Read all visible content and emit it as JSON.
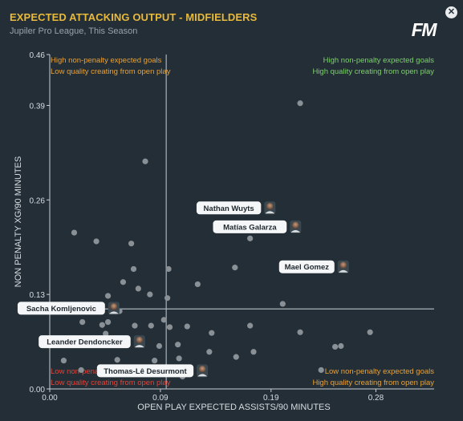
{
  "header": {
    "title": "EXPECTED ATTACKING OUTPUT - MIDFIELDERS",
    "subtitle": "Jupiler Pro League, This Season",
    "logo": "FM",
    "close_icon": "close-icon"
  },
  "colors": {
    "background": "#232e36",
    "title": "#e8b93a",
    "quadrant_top_left": "#e8a23a",
    "quadrant_top_right": "#7fcf6f",
    "quadrant_bottom_left": "#e0453a",
    "quadrant_bottom_right": "#e8a23a",
    "point": "#8a9196",
    "reference_line": "#aab3ba"
  },
  "chart_data": {
    "type": "scatter",
    "title": "EXPECTED ATTACKING OUTPUT - MIDFIELDERS",
    "subtitle": "Jupiler Pro League, This Season",
    "xlabel": "OPEN PLAY EXPECTED ASSISTS/90 MINUTES",
    "ylabel": "NON PENALTY XG/90 MINUTES",
    "xlim": [
      0,
      0.33
    ],
    "ylim": [
      0,
      0.46
    ],
    "x_ticks": [
      "0.00",
      "0.09",
      "0.19",
      "0.28"
    ],
    "x_tick_values": [
      0.0,
      0.095,
      0.19,
      0.28
    ],
    "y_ticks": [
      "0.00",
      "0.13",
      "0.26",
      "0.39",
      "0.46"
    ],
    "y_tick_values": [
      0.0,
      0.13,
      0.26,
      0.39,
      0.46
    ],
    "reference_lines": {
      "x": 0.1,
      "y": 0.11
    },
    "grid": false,
    "quadrants": {
      "top_left": [
        "High non-penalty expected goals",
        "Low quality creating from open play"
      ],
      "top_right": [
        "High non-penalty expected goals",
        "High quality creating from open play"
      ],
      "bottom_left": [
        "Low non-penalty expected goals",
        "Low quality creating from open play"
      ],
      "bottom_right": [
        "Low non-penalty expected goals",
        "High quality creating from open play"
      ]
    },
    "highlighted": [
      {
        "name": "Nathan Wuyts",
        "x": 0.189,
        "y": 0.249
      },
      {
        "name": "Matías Galarza",
        "x": 0.211,
        "y": 0.223
      },
      {
        "name": "Mael Gomez",
        "x": 0.252,
        "y": 0.168
      },
      {
        "name": "Sacha Komljenovic",
        "x": 0.055,
        "y": 0.111
      },
      {
        "name": "Leander Dendoncker",
        "x": 0.077,
        "y": 0.065
      },
      {
        "name": "Thomas-Lê Desurmont",
        "x": 0.131,
        "y": 0.025
      }
    ],
    "points": [
      {
        "x": 0.215,
        "y": 0.393
      },
      {
        "x": 0.082,
        "y": 0.313
      },
      {
        "x": 0.021,
        "y": 0.215
      },
      {
        "x": 0.04,
        "y": 0.203
      },
      {
        "x": 0.15,
        "y": 0.222
      },
      {
        "x": 0.172,
        "y": 0.207
      },
      {
        "x": 0.07,
        "y": 0.2
      },
      {
        "x": 0.072,
        "y": 0.165
      },
      {
        "x": 0.102,
        "y": 0.165
      },
      {
        "x": 0.159,
        "y": 0.167
      },
      {
        "x": 0.063,
        "y": 0.147
      },
      {
        "x": 0.076,
        "y": 0.138
      },
      {
        "x": 0.127,
        "y": 0.144
      },
      {
        "x": 0.05,
        "y": 0.128
      },
      {
        "x": 0.086,
        "y": 0.13
      },
      {
        "x": 0.101,
        "y": 0.125
      },
      {
        "x": 0.04,
        "y": 0.11
      },
      {
        "x": 0.06,
        "y": 0.107
      },
      {
        "x": 0.2,
        "y": 0.117
      },
      {
        "x": 0.098,
        "y": 0.095
      },
      {
        "x": 0.028,
        "y": 0.092
      },
      {
        "x": 0.05,
        "y": 0.092
      },
      {
        "x": 0.045,
        "y": 0.088
      },
      {
        "x": 0.073,
        "y": 0.087
      },
      {
        "x": 0.087,
        "y": 0.087
      },
      {
        "x": 0.103,
        "y": 0.085
      },
      {
        "x": 0.118,
        "y": 0.086
      },
      {
        "x": 0.172,
        "y": 0.087
      },
      {
        "x": 0.048,
        "y": 0.076
      },
      {
        "x": 0.139,
        "y": 0.077
      },
      {
        "x": 0.215,
        "y": 0.078
      },
      {
        "x": 0.275,
        "y": 0.078
      },
      {
        "x": 0.023,
        "y": 0.063
      },
      {
        "x": 0.03,
        "y": 0.064
      },
      {
        "x": 0.042,
        "y": 0.064
      },
      {
        "x": 0.094,
        "y": 0.059
      },
      {
        "x": 0.11,
        "y": 0.061
      },
      {
        "x": 0.137,
        "y": 0.051
      },
      {
        "x": 0.175,
        "y": 0.051
      },
      {
        "x": 0.245,
        "y": 0.058
      },
      {
        "x": 0.25,
        "y": 0.059
      },
      {
        "x": 0.012,
        "y": 0.039
      },
      {
        "x": 0.058,
        "y": 0.04
      },
      {
        "x": 0.09,
        "y": 0.039
      },
      {
        "x": 0.111,
        "y": 0.042
      },
      {
        "x": 0.16,
        "y": 0.044
      },
      {
        "x": 0.027,
        "y": 0.026
      },
      {
        "x": 0.233,
        "y": 0.026
      },
      {
        "x": 0.114,
        "y": 0.017
      }
    ]
  }
}
